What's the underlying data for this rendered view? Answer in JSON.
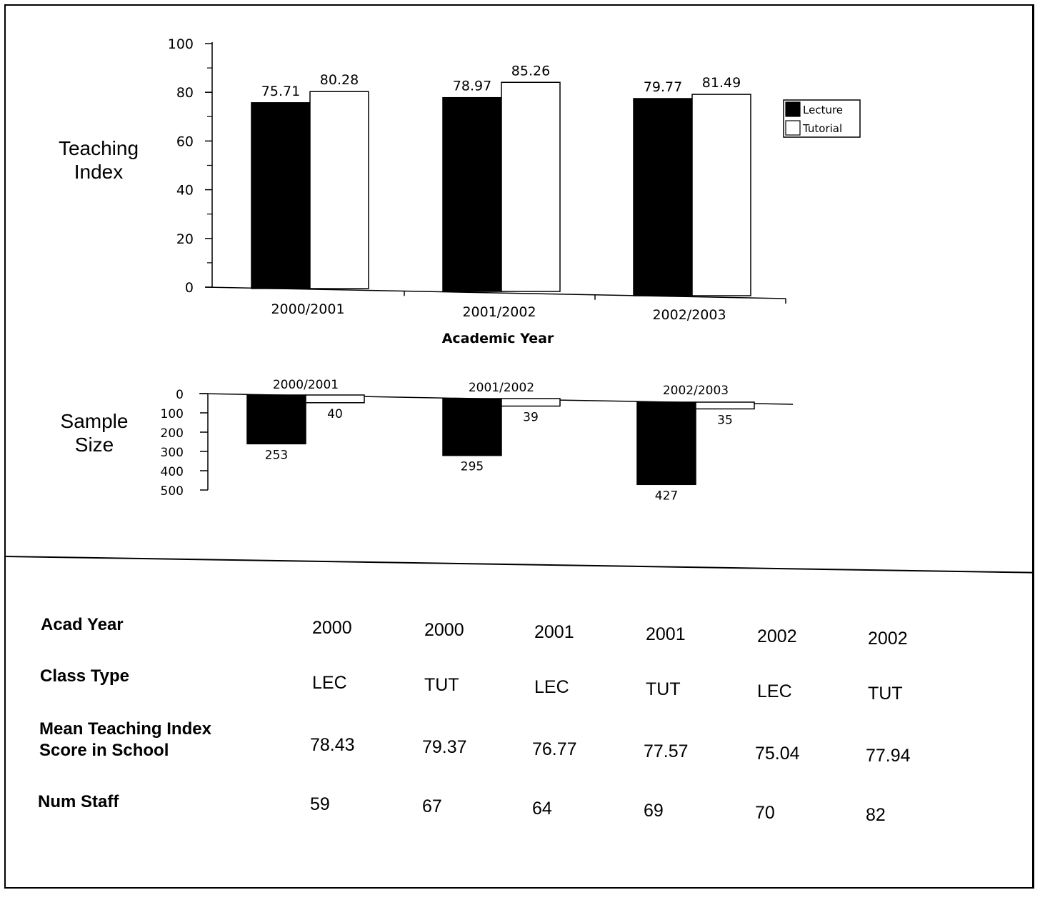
{
  "chart_data": [
    {
      "type": "bar",
      "ylabel": "Teaching Index",
      "xlabel": "Academic Year",
      "categories": [
        "2000/2001",
        "2001/2002",
        "2002/2003"
      ],
      "ylim": [
        0,
        100
      ],
      "yticks": [
        0,
        20,
        40,
        60,
        80,
        100
      ],
      "series": [
        {
          "name": "Lecture",
          "values": [
            75.71,
            78.97,
            79.77
          ],
          "color": "#000000"
        },
        {
          "name": "Tutorial",
          "values": [
            80.28,
            85.26,
            81.49
          ],
          "color": "#ffffff"
        }
      ],
      "data_labels": [
        "75.71",
        "80.28",
        "78.97",
        "85.26",
        "79.77",
        "81.49"
      ],
      "legend": "right"
    },
    {
      "type": "bar",
      "ylabel": "Sample Size",
      "categories": [
        "2000/2001",
        "2001/2002",
        "2002/2003"
      ],
      "ylim": [
        0,
        500
      ],
      "yticks": [
        0,
        100,
        200,
        300,
        400,
        500
      ],
      "inverted": true,
      "series": [
        {
          "name": "Lecture",
          "values": [
            253,
            295,
            427
          ],
          "color": "#000000"
        },
        {
          "name": "Tutorial",
          "values": [
            40,
            39,
            35
          ],
          "color": "#ffffff"
        }
      ],
      "data_labels": [
        "253",
        "40",
        "295",
        "39",
        "427",
        "35"
      ]
    }
  ],
  "table": {
    "row_labels": [
      "Acad Year",
      "Class Type",
      "Mean Teaching Index",
      "Score in School",
      "Num Staff"
    ],
    "acad_year": [
      "2000",
      "2000",
      "2001",
      "2001",
      "2002",
      "2002"
    ],
    "class_type": [
      "LEC",
      "TUT",
      "LEC",
      "TUT",
      "LEC",
      "TUT"
    ],
    "mean_score": [
      "78.43",
      "79.37",
      "76.77",
      "77.57",
      "75.04",
      "77.94"
    ],
    "num_staff": [
      "59",
      "67",
      "64",
      "69",
      "70",
      "82"
    ]
  }
}
